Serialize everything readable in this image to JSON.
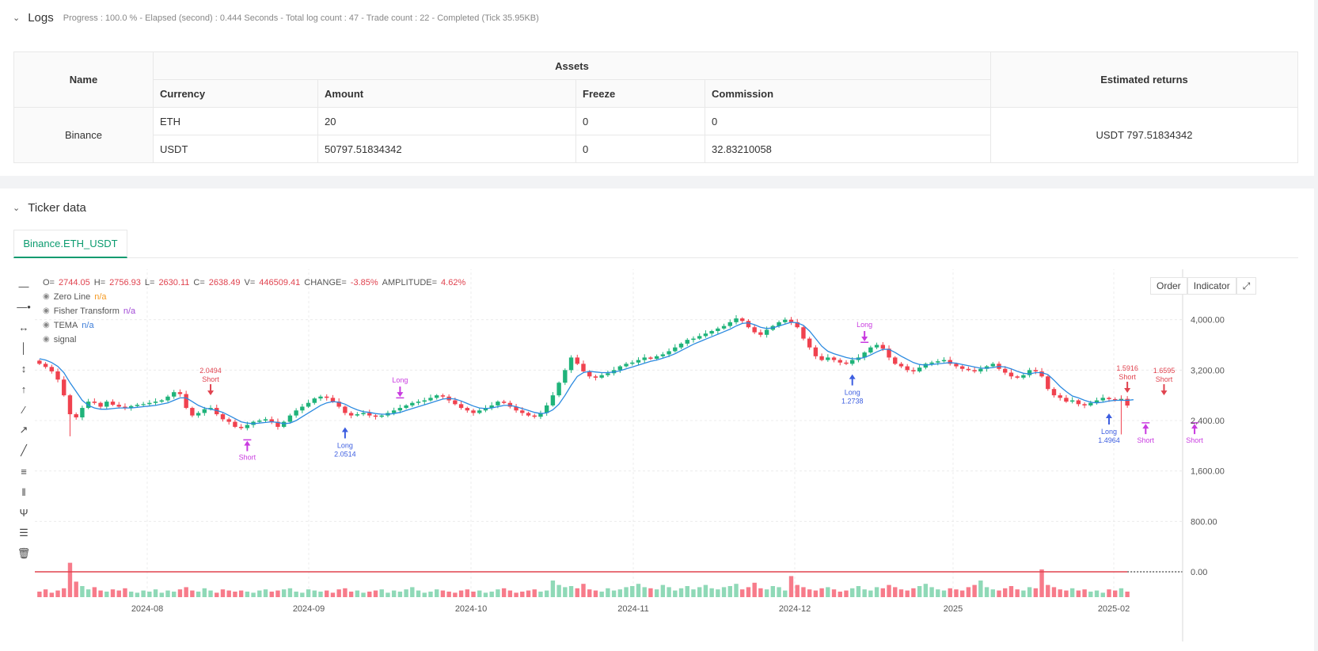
{
  "logs": {
    "title": "Logs",
    "meta": "Progress : 100.0 % - Elapsed (second) : 0.444  Seconds - Total log count : 47 - Trade count : 22 - Completed (Tick 35.95KB)"
  },
  "assets_table": {
    "headers": {
      "name": "Name",
      "assets": "Assets",
      "returns": "Estimated returns"
    },
    "subheaders": [
      "Currency",
      "Amount",
      "Freeze",
      "Commission"
    ],
    "exchange": "Binance",
    "rows": [
      {
        "currency": "ETH",
        "amount": "20",
        "freeze": "0",
        "commission": "0"
      },
      {
        "currency": "USDT",
        "amount": "50797.51834342",
        "freeze": "0",
        "commission": "32.83210058"
      }
    ],
    "estimated_returns": "USDT 797.51834342"
  },
  "ticker": {
    "title": "Ticker data",
    "tab": "Binance.ETH_USDT"
  },
  "chart_header": {
    "o_label": "O=",
    "o": "2744.05",
    "h_label": "H=",
    "h": "2756.93",
    "l_label": "L=",
    "l": "2630.11",
    "c_label": "C=",
    "c": "2638.49",
    "v_label": "V=",
    "v": "446509.41",
    "change_label": "CHANGE=",
    "change": "-3.85%",
    "amp_label": "AMPLITUDE=",
    "amp": "4.62%"
  },
  "legend": [
    {
      "name": "Zero Line",
      "value": "n/a",
      "color": "#f59a23"
    },
    {
      "name": "Fisher Transform",
      "value": "n/a",
      "color": "#a24bd6"
    },
    {
      "name": "TEMA",
      "value": "n/a",
      "color": "#3d7dd8"
    },
    {
      "name": "signal",
      "value": ""
    }
  ],
  "chart_buttons": {
    "order": "Order",
    "indicator": "Indicator"
  },
  "toolbar_icons": [
    "horizontal-line-icon",
    "horizontal-ray-icon",
    "extended-line-icon",
    "vertical-line-icon",
    "vertical-segment-icon",
    "vertical-ray-icon",
    "trend-line-icon",
    "trend-ray-icon",
    "line-segment-icon",
    "price-range-icon",
    "parallel-channel-icon",
    "pitchfork-icon",
    "fib-levels-icon",
    "trash-icon"
  ],
  "colors": {
    "up": "#26a69a",
    "up_fill": "#1fb37a",
    "down": "#ef5350",
    "down_fill": "#f0424f",
    "tema": "#2b8ae0",
    "long": "#3d5ee0",
    "short_buy": "#c93be0",
    "accent": "#0b9b6f"
  },
  "chart_data": {
    "type": "candlestick",
    "x_ticks": [
      "2024-08",
      "2024-09",
      "2024-10",
      "2024-11",
      "2024-12",
      "2025",
      "2025-02"
    ],
    "y_ticks": [
      "4,000.00",
      "3,200.00",
      "2,400.00",
      "1,600.00",
      "800.00",
      "0.00"
    ],
    "ylim": [
      0,
      4800
    ],
    "last_close": 2638.49,
    "candles_open": [
      3350,
      3300,
      3250,
      3180,
      3050,
      2800,
      2500,
      2450,
      2600,
      2700,
      2680,
      2620,
      2700,
      2650,
      2620,
      2600,
      2630,
      2650,
      2660,
      2680,
      2700,
      2720,
      2780,
      2850,
      2820,
      2600,
      2480,
      2520,
      2580,
      2600,
      2500,
      2420,
      2380,
      2300,
      2280,
      2330,
      2380,
      2400,
      2420,
      2380,
      2300,
      2380,
      2480,
      2560,
      2620,
      2680,
      2750,
      2780,
      2760,
      2700,
      2620,
      2520,
      2480,
      2500,
      2520,
      2480,
      2460,
      2480,
      2520,
      2560,
      2600,
      2640,
      2680,
      2700,
      2720,
      2760,
      2800,
      2780,
      2720,
      2660,
      2600,
      2560,
      2520,
      2560,
      2600,
      2640,
      2700,
      2680,
      2620,
      2560,
      2520,
      2480,
      2460,
      2520,
      2640,
      2800,
      3000,
      3200,
      3400,
      3300,
      3180,
      3100,
      3080,
      3120,
      3150,
      3200,
      3260,
      3300,
      3320,
      3360,
      3400,
      3380,
      3420,
      3450,
      3500,
      3560,
      3620,
      3680,
      3700,
      3740,
      3780,
      3820,
      3860,
      3900,
      3960,
      4020,
      3980,
      3880,
      3800,
      3760,
      3840,
      3900,
      3960,
      4000,
      3960,
      3880,
      3700,
      3560,
      3420,
      3360,
      3400,
      3360,
      3320,
      3300,
      3360,
      3400,
      3480,
      3560,
      3600,
      3540,
      3400,
      3300,
      3260,
      3200,
      3180,
      3240,
      3300,
      3320,
      3340,
      3360,
      3300,
      3260,
      3220,
      3200,
      3180,
      3220,
      3260,
      3300,
      3220,
      3160,
      3100,
      3080,
      3120,
      3200,
      3180,
      3100,
      2900,
      2800,
      2760,
      2700,
      2720,
      2660,
      2640,
      2680,
      2720,
      2760,
      2740,
      2720,
      2744
    ],
    "candles_close": [
      3300,
      3250,
      3180,
      3050,
      2800,
      2500,
      2450,
      2600,
      2700,
      2680,
      2620,
      2700,
      2650,
      2620,
      2600,
      2630,
      2650,
      2660,
      2680,
      2700,
      2720,
      2780,
      2850,
      2820,
      2600,
      2480,
      2520,
      2580,
      2600,
      2500,
      2420,
      2380,
      2300,
      2280,
      2330,
      2380,
      2400,
      2420,
      2380,
      2300,
      2380,
      2480,
      2560,
      2620,
      2680,
      2750,
      2780,
      2760,
      2700,
      2620,
      2520,
      2480,
      2500,
      2520,
      2480,
      2460,
      2480,
      2520,
      2560,
      2600,
      2640,
      2680,
      2700,
      2720,
      2760,
      2800,
      2780,
      2720,
      2660,
      2600,
      2560,
      2520,
      2560,
      2600,
      2640,
      2700,
      2680,
      2620,
      2560,
      2520,
      2480,
      2460,
      2520,
      2640,
      2800,
      3000,
      3200,
      3400,
      3300,
      3180,
      3100,
      3080,
      3120,
      3150,
      3200,
      3260,
      3300,
      3320,
      3360,
      3400,
      3380,
      3420,
      3450,
      3500,
      3560,
      3620,
      3680,
      3700,
      3740,
      3780,
      3820,
      3860,
      3900,
      3960,
      4020,
      3980,
      3880,
      3800,
      3760,
      3840,
      3900,
      3960,
      4000,
      3960,
      3880,
      3700,
      3560,
      3420,
      3360,
      3400,
      3360,
      3320,
      3300,
      3360,
      3400,
      3480,
      3560,
      3600,
      3540,
      3400,
      3300,
      3260,
      3200,
      3180,
      3240,
      3300,
      3320,
      3340,
      3360,
      3300,
      3260,
      3220,
      3200,
      3180,
      3220,
      3260,
      3300,
      3220,
      3160,
      3100,
      3080,
      3120,
      3200,
      3180,
      3100,
      2900,
      2800,
      2760,
      2700,
      2720,
      2660,
      2640,
      2680,
      2720,
      2760,
      2740,
      2720,
      2744,
      2638
    ],
    "tema": [
      3380,
      3360,
      3320,
      3260,
      3160,
      3000,
      2860,
      2720,
      2640,
      2600,
      2580,
      2580,
      2590,
      2600,
      2600,
      2600,
      2610,
      2620,
      2630,
      2640,
      2660,
      2680,
      2720,
      2760,
      2760,
      2700,
      2640,
      2600,
      2580,
      2560,
      2530,
      2480,
      2430,
      2380,
      2360,
      2350,
      2360,
      2370,
      2380,
      2370,
      2350,
      2360,
      2400,
      2460,
      2520,
      2580,
      2640,
      2680,
      2700,
      2690,
      2660,
      2610,
      2570,
      2540,
      2530,
      2510,
      2500,
      2500,
      2510,
      2530,
      2560,
      2590,
      2620,
      2650,
      2680,
      2710,
      2740,
      2750,
      2740,
      2710,
      2670,
      2630,
      2600,
      2590,
      2600,
      2620,
      2640,
      2640,
      2620,
      2590,
      2560,
      2530,
      2510,
      2520,
      2570,
      2660,
      2800,
      2960,
      3100,
      3160,
      3180,
      3170,
      3160,
      3160,
      3170,
      3190,
      3220,
      3250,
      3280,
      3310,
      3340,
      3360,
      3390,
      3420,
      3460,
      3510,
      3560,
      3610,
      3650,
      3690,
      3730,
      3770,
      3810,
      3850,
      3900,
      3940,
      3950,
      3920,
      3880,
      3860,
      3870,
      3900,
      3930,
      3960,
      3950,
      3910,
      3820,
      3700,
      3580,
      3500,
      3460,
      3430,
      3400,
      3380,
      3380,
      3400,
      3440,
      3490,
      3530,
      3530,
      3480,
      3420,
      3370,
      3320,
      3290,
      3280,
      3290,
      3300,
      3310,
      3320,
      3310,
      3290,
      3270,
      3250,
      3230,
      3230,
      3240,
      3260,
      3250,
      3220,
      3180,
      3150,
      3140,
      3160,
      3160,
      3130,
      3040,
      2940,
      2860,
      2790,
      2760,
      2720,
      2690,
      2680,
      2690,
      2710,
      2720,
      2720,
      2720,
      2730
    ],
    "volume": [
      10,
      14,
      8,
      12,
      16,
      62,
      28,
      20,
      14,
      18,
      12,
      10,
      14,
      12,
      16,
      10,
      8,
      12,
      10,
      14,
      8,
      12,
      10,
      14,
      18,
      12,
      10,
      16,
      12,
      8,
      14,
      12,
      10,
      12,
      10,
      8,
      12,
      14,
      10,
      12,
      14,
      16,
      10,
      8,
      14,
      12,
      10,
      12,
      8,
      14,
      16,
      10,
      12,
      8,
      10,
      12,
      14,
      8,
      12,
      10,
      14,
      18,
      12,
      8,
      10,
      14,
      12,
      10,
      8,
      12,
      14,
      10,
      12,
      8,
      10,
      14,
      16,
      12,
      8,
      10,
      12,
      14,
      10,
      12,
      30,
      22,
      18,
      20,
      16,
      24,
      14,
      12,
      10,
      16,
      12,
      14,
      18,
      20,
      24,
      18,
      16,
      14,
      22,
      18,
      12,
      16,
      20,
      14,
      18,
      22,
      16,
      14,
      18,
      20,
      24,
      14,
      18,
      26,
      16,
      14,
      20,
      18,
      12,
      38,
      22,
      18,
      14,
      12,
      16,
      18,
      14,
      10,
      12,
      16,
      20,
      14,
      12,
      18,
      16,
      22,
      18,
      14,
      12,
      16,
      20,
      24,
      18,
      14,
      12,
      16,
      14,
      12,
      18,
      22,
      30,
      18,
      14,
      12,
      16,
      20,
      14,
      12,
      18,
      16,
      50,
      22,
      18,
      14,
      12,
      16,
      12,
      14,
      10,
      12,
      8,
      14,
      12,
      16,
      10
    ],
    "signals": [
      {
        "kind": "short_entry",
        "label": "Short",
        "value": "2.0494",
        "index": 28
      },
      {
        "kind": "short_exit",
        "label": "Short",
        "index": 34
      },
      {
        "kind": "long_entry",
        "label": "Long",
        "value": "2.0514",
        "index": 50
      },
      {
        "kind": "long_exit",
        "label": "Long",
        "index": 59
      },
      {
        "kind": "long_exit",
        "label": "Long",
        "index": 135
      },
      {
        "kind": "long_entry",
        "label": "Long",
        "value": "1.2738",
        "index": 133
      },
      {
        "kind": "short_entry",
        "label": "Short",
        "value": "1.5916",
        "index": 178
      },
      {
        "kind": "long_entry",
        "label": "Long",
        "value": "1.4964",
        "index": 175
      },
      {
        "kind": "short_entry",
        "label": "Short",
        "value": "1.6595",
        "index": 184
      },
      {
        "kind": "short_exit",
        "label": "Short",
        "index": 181
      },
      {
        "kind": "short_exit",
        "label": "Short",
        "index": 189
      }
    ]
  }
}
